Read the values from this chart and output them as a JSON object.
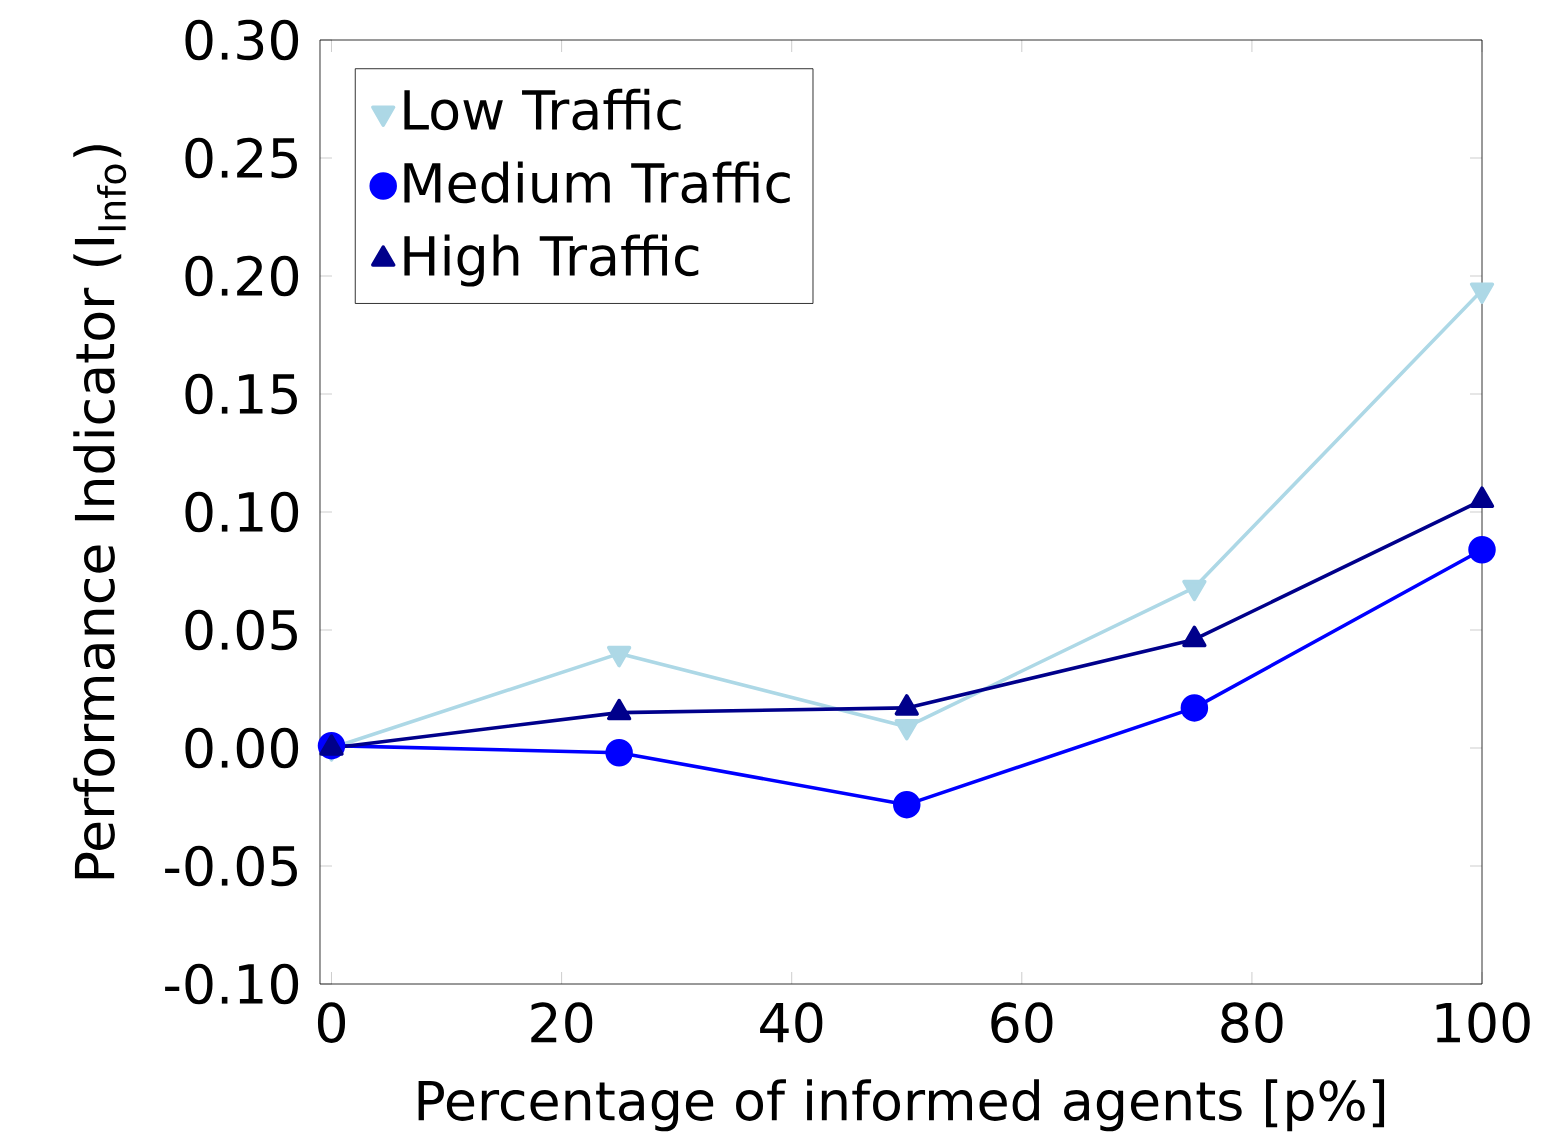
{
  "chart_data": {
    "type": "line",
    "xlabel": "Percentage of informed agents [p%]",
    "ylabel": "Performance Indicator (I$_{Info}$)",
    "x": [
      0,
      25,
      50,
      75,
      100
    ],
    "series": [
      {
        "name": "Low Traffic",
        "color": "#add8e6",
        "marker": "triangle-down",
        "values": [
          0.0,
          0.04,
          0.009,
          0.068,
          0.194
        ]
      },
      {
        "name": "Medium Traffic",
        "color": "#0000ff",
        "marker": "circle",
        "values": [
          0.001,
          -0.002,
          -0.024,
          0.017,
          0.084
        ]
      },
      {
        "name": "High Traffic",
        "color": "#00008b",
        "marker": "triangle",
        "values": [
          0.0,
          0.015,
          0.017,
          0.046,
          0.105
        ]
      }
    ],
    "xlim": [
      -1,
      100
    ],
    "ylim": [
      -0.1,
      0.3
    ],
    "xticks": [
      0,
      20,
      40,
      60,
      80,
      100
    ],
    "yticks": [
      {
        "value": -0.1,
        "label": "-0.10"
      },
      {
        "value": -0.05,
        "label": "-0.05"
      },
      {
        "value": 0,
        "label": "0.00"
      },
      {
        "value": 0.05,
        "label": "0.05"
      },
      {
        "value": 0.1,
        "label": "0.10"
      },
      {
        "value": 0.15,
        "label": "0.15"
      },
      {
        "value": 0.2,
        "label": "0.20"
      },
      {
        "value": 0.25,
        "label": "0.25"
      },
      {
        "value": 0.3,
        "label": "0.30"
      }
    ],
    "legend": "top left",
    "grid": false,
    "line_style": "solid"
  }
}
